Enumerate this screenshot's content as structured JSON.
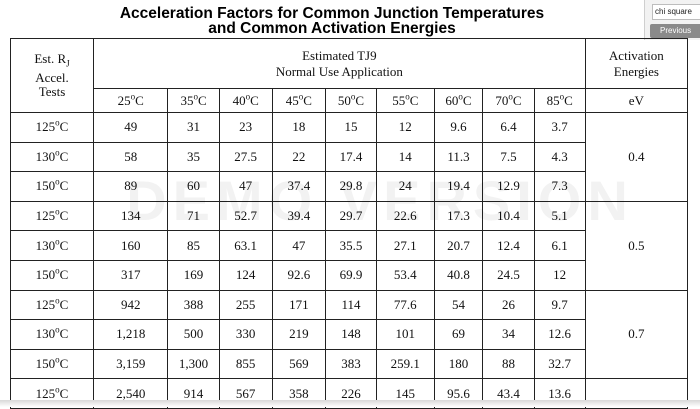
{
  "title_line1": "Acceleration Factors for Common Junction Temperatures",
  "title_line2": "and Common Activation Energies",
  "side": {
    "search_text": "chi square",
    "button_label": "Previous"
  },
  "table": {
    "est_header_lines": [
      "Est. R",
      "Accel.",
      "Tests"
    ],
    "est_header_sub": "J",
    "group_header_line1": "Estimated TJ9",
    "group_header_line2": "Normal Use Application",
    "activation_header_line1": "Activation",
    "activation_header_line2": "Energies",
    "temp_columns": [
      "25",
      "35",
      "40",
      "45",
      "50",
      "55",
      "60",
      "70",
      "85"
    ],
    "degree_unit": "C",
    "ev_unit": "eV",
    "groups": [
      {
        "energy": "0.4",
        "rows": [
          {
            "label": "125",
            "values": [
              "49",
              "31",
              "23",
              "18",
              "15",
              "12",
              "9.6",
              "6.4",
              "3.7"
            ]
          },
          {
            "label": "130",
            "values": [
              "58",
              "35",
              "27.5",
              "22",
              "17.4",
              "14",
              "11.3",
              "7.5",
              "4.3"
            ]
          },
          {
            "label": "150",
            "values": [
              "89",
              "60",
              "47",
              "37.4",
              "29.8",
              "24",
              "19.4",
              "12.9",
              "7.3"
            ]
          }
        ]
      },
      {
        "energy": "0.5",
        "rows": [
          {
            "label": "125",
            "values": [
              "134",
              "71",
              "52.7",
              "39.4",
              "29.7",
              "22.6",
              "17.3",
              "10.4",
              "5.1"
            ]
          },
          {
            "label": "130",
            "values": [
              "160",
              "85",
              "63.1",
              "47",
              "35.5",
              "27.1",
              "20.7",
              "12.4",
              "6.1"
            ]
          },
          {
            "label": "150",
            "values": [
              "317",
              "169",
              "124",
              "92.6",
              "69.9",
              "53.4",
              "40.8",
              "24.5",
              "12"
            ]
          }
        ]
      },
      {
        "energy": "0.7",
        "rows": [
          {
            "label": "125",
            "values": [
              "942",
              "388",
              "255",
              "171",
              "114",
              "77.6",
              "54",
              "26",
              "9.7"
            ]
          },
          {
            "label": "130",
            "values": [
              "1,218",
              "500",
              "330",
              "219",
              "148",
              "101",
              "69",
              "34",
              "12.6"
            ]
          },
          {
            "label": "150",
            "values": [
              "3,159",
              "1,300",
              "855",
              "569",
              "383",
              "259.1",
              "180",
              "88",
              "32.7"
            ]
          }
        ]
      },
      {
        "energy": "",
        "rows": [
          {
            "label": "125",
            "values": [
              "2,540",
              "914",
              "567",
              "358",
              "226",
              "145",
              "95.6",
              "43.4",
              "13.6"
            ]
          }
        ]
      }
    ]
  },
  "watermark": "DEMO VERSION"
}
